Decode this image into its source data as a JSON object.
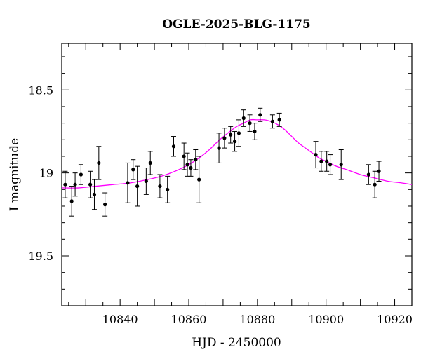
{
  "chart_data": {
    "type": "scatter",
    "title": "OGLE-2025-BLG-1175",
    "xlabel": "HJD - 2450000",
    "ylabel": "I magnitude",
    "xlim": [
      10823,
      10925
    ],
    "ylim": [
      18.22,
      19.8
    ],
    "y_inverted": true,
    "grid": false,
    "xticks": [
      {
        "value": 10840,
        "label": "10840"
      },
      {
        "value": 10860,
        "label": "10860"
      },
      {
        "value": 10880,
        "label": "10880"
      },
      {
        "value": 10900,
        "label": "10900"
      },
      {
        "value": 10920,
        "label": "10920"
      }
    ],
    "yticks": [
      {
        "value": 18.5,
        "label": "18.5"
      },
      {
        "value": 19,
        "label": "19"
      },
      {
        "value": 19.5,
        "label": "19.5"
      }
    ],
    "colors": {
      "points": "#000000",
      "model": "#ff00ff"
    },
    "series": [
      {
        "type": "scatter_errorbar",
        "points": [
          {
            "x": 10824.0,
            "y": 19.07,
            "err": 0.08
          },
          {
            "x": 10825.9,
            "y": 19.17,
            "err": 0.09
          },
          {
            "x": 10826.9,
            "y": 19.07,
            "err": 0.07
          },
          {
            "x": 10828.6,
            "y": 19.01,
            "err": 0.06
          },
          {
            "x": 10831.3,
            "y": 19.07,
            "err": 0.08
          },
          {
            "x": 10832.5,
            "y": 19.13,
            "err": 0.09
          },
          {
            "x": 10833.8,
            "y": 18.94,
            "err": 0.1
          },
          {
            "x": 10835.6,
            "y": 19.19,
            "err": 0.07
          },
          {
            "x": 10842.2,
            "y": 19.06,
            "err": 0.12
          },
          {
            "x": 10843.8,
            "y": 18.98,
            "err": 0.06
          },
          {
            "x": 10845.0,
            "y": 19.08,
            "err": 0.12
          },
          {
            "x": 10847.6,
            "y": 19.05,
            "err": 0.08
          },
          {
            "x": 10848.8,
            "y": 18.94,
            "err": 0.07
          },
          {
            "x": 10851.6,
            "y": 19.08,
            "err": 0.07
          },
          {
            "x": 10853.8,
            "y": 19.1,
            "err": 0.08
          },
          {
            "x": 10855.6,
            "y": 18.84,
            "err": 0.06
          },
          {
            "x": 10858.6,
            "y": 18.9,
            "err": 0.08
          },
          {
            "x": 10859.6,
            "y": 18.95,
            "err": 0.07
          },
          {
            "x": 10860.6,
            "y": 18.97,
            "err": 0.05
          },
          {
            "x": 10862.0,
            "y": 18.92,
            "err": 0.06
          },
          {
            "x": 10863.0,
            "y": 19.04,
            "err": 0.14
          },
          {
            "x": 10868.8,
            "y": 18.85,
            "err": 0.09
          },
          {
            "x": 10870.4,
            "y": 18.79,
            "err": 0.06
          },
          {
            "x": 10872.2,
            "y": 18.77,
            "err": 0.05
          },
          {
            "x": 10873.4,
            "y": 18.81,
            "err": 0.06
          },
          {
            "x": 10874.6,
            "y": 18.76,
            "err": 0.08
          },
          {
            "x": 10876.0,
            "y": 18.67,
            "err": 0.05
          },
          {
            "x": 10877.8,
            "y": 18.7,
            "err": 0.05
          },
          {
            "x": 10879.2,
            "y": 18.75,
            "err": 0.05
          },
          {
            "x": 10880.8,
            "y": 18.65,
            "err": 0.04
          },
          {
            "x": 10884.4,
            "y": 18.69,
            "err": 0.04
          },
          {
            "x": 10886.4,
            "y": 18.68,
            "err": 0.04
          },
          {
            "x": 10897.0,
            "y": 18.89,
            "err": 0.08
          },
          {
            "x": 10898.6,
            "y": 18.93,
            "err": 0.06
          },
          {
            "x": 10900.2,
            "y": 18.93,
            "err": 0.06
          },
          {
            "x": 10901.2,
            "y": 18.95,
            "err": 0.06
          },
          {
            "x": 10904.4,
            "y": 18.95,
            "err": 0.09
          },
          {
            "x": 10912.4,
            "y": 19.01,
            "err": 0.06
          },
          {
            "x": 10914.2,
            "y": 19.07,
            "err": 0.08
          },
          {
            "x": 10915.4,
            "y": 18.99,
            "err": 0.06
          }
        ]
      },
      {
        "type": "model_curve",
        "x": [
          10823,
          10828,
          10833,
          10838,
          10843,
          10848,
          10852,
          10856,
          10860,
          10863,
          10866,
          10869,
          10872,
          10874,
          10876,
          10878,
          10880,
          10882,
          10884,
          10886,
          10888,
          10890,
          10892,
          10894,
          10896,
          10898,
          10900,
          10903,
          10906,
          10910,
          10914,
          10918,
          10922,
          10925
        ],
        "y": [
          19.09,
          19.09,
          19.08,
          19.07,
          19.06,
          19.04,
          19.02,
          18.99,
          18.95,
          18.91,
          18.86,
          18.8,
          18.75,
          18.72,
          18.7,
          18.68,
          18.68,
          18.68,
          18.69,
          18.71,
          18.74,
          18.78,
          18.82,
          18.85,
          18.88,
          18.91,
          18.93,
          18.96,
          18.98,
          19.01,
          19.03,
          19.05,
          19.06,
          19.07
        ]
      }
    ]
  }
}
